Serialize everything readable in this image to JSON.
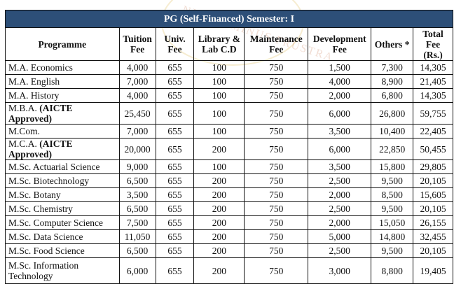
{
  "table": {
    "title": "PG (Self-Financed)  Semester: I",
    "headers": [
      "Programme",
      "Tuition Fee",
      "Univ. Fee",
      "Library & Lab C.D",
      "Maintenance Fee",
      "Development Fee",
      "Others *",
      "Total Fee (Rs.)"
    ],
    "rows": [
      {
        "name": "M.A. Economics",
        "suffix": "",
        "values": [
          "4,000",
          "655",
          "100",
          "750",
          "1,500",
          "7,300",
          "14,305"
        ]
      },
      {
        "name": "M.A. English",
        "suffix": "",
        "values": [
          "7,000",
          "655",
          "100",
          "750",
          "4,000",
          "8,900",
          "21,405"
        ]
      },
      {
        "name": "M.A. History",
        "suffix": "",
        "values": [
          "4,000",
          "655",
          "100",
          "750",
          "2,000",
          "6,800",
          "14,305"
        ]
      },
      {
        "name": "M.B.A. ",
        "suffix": "(AICTE Approved)",
        "values": [
          "25,450",
          "655",
          "100",
          "750",
          "6,000",
          "26,800",
          "59,755"
        ]
      },
      {
        "name": "M.Com.",
        "suffix": "",
        "values": [
          "7,000",
          "655",
          "100",
          "750",
          "3,500",
          "10,400",
          "22,405"
        ]
      },
      {
        "name": "M.C.A. ",
        "suffix": "(AICTE Approved)",
        "values": [
          "20,000",
          "655",
          "200",
          "750",
          "6,000",
          "22,850",
          "50,455"
        ]
      },
      {
        "name": "M.Sc. Actuarial Science",
        "suffix": "",
        "values": [
          "9,000",
          "655",
          "100",
          "750",
          "3,500",
          "15,800",
          "29,805"
        ]
      },
      {
        "name": "M.Sc. Biotechnology",
        "suffix": "",
        "values": [
          "6,500",
          "655",
          "200",
          "750",
          "2,500",
          "9,500",
          "20,105"
        ]
      },
      {
        "name": "M.Sc. Botany",
        "suffix": "",
        "values": [
          "3,500",
          "655",
          "200",
          "750",
          "2,000",
          "8,500",
          "15,605"
        ]
      },
      {
        "name": "M.Sc. Chemistry",
        "suffix": "",
        "values": [
          "6,500",
          "655",
          "200",
          "750",
          "2,500",
          "9,500",
          "20,105"
        ]
      },
      {
        "name": "M.Sc. Computer Science",
        "suffix": "",
        "values": [
          "7,500",
          "655",
          "200",
          "750",
          "2,000",
          "15,050",
          "26,155"
        ]
      },
      {
        "name": "M.Sc. Data Science",
        "suffix": "",
        "values": [
          "11,050",
          "655",
          "200",
          "750",
          "5,000",
          "14,800",
          "32,455"
        ]
      },
      {
        "name": "M.Sc. Food Science",
        "suffix": "",
        "values": [
          "6,500",
          "655",
          "200",
          "750",
          "2,500",
          "9,500",
          "20,105"
        ]
      },
      {
        "name": "M.Sc. Information Technology",
        "suffix": "",
        "values": [
          "6,000",
          "655",
          "200",
          "750",
          "3,000",
          "8,800",
          "19,405"
        ]
      }
    ]
  },
  "watermark": {
    "text": "NISI DOMINUS FRUSTRA"
  },
  "colors": {
    "title_bar": "#2d4f78"
  }
}
